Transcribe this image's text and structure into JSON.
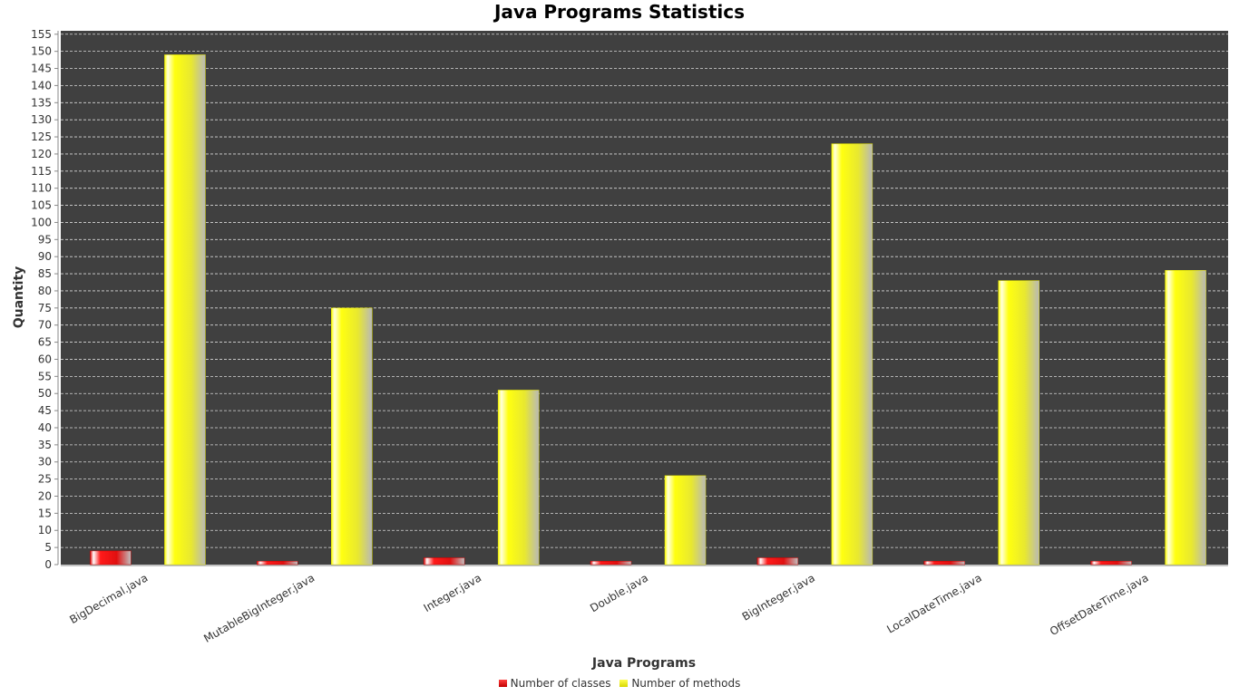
{
  "chart_data": {
    "type": "bar",
    "title": "Java Programs Statistics",
    "xlabel": "Java Programs",
    "ylabel": "Quantity",
    "categories": [
      "BigDecimal.java",
      "MutableBigInteger.java",
      "Integer.java",
      "Double.java",
      "BigInteger.java",
      "LocalDateTime.java",
      "OffsetDateTime.java"
    ],
    "series": [
      {
        "name": "Number of classes",
        "color": "#e00000",
        "values": [
          4,
          1,
          2,
          1,
          2,
          1,
          1
        ]
      },
      {
        "name": "Number of methods",
        "color": "#ffff00",
        "values": [
          149,
          75,
          51,
          26,
          123,
          83,
          86
        ]
      }
    ],
    "ylim": [
      0,
      156
    ],
    "ytick_step": 5,
    "grid": true,
    "legend_position": "bottom",
    "plot_background": "#404040"
  }
}
